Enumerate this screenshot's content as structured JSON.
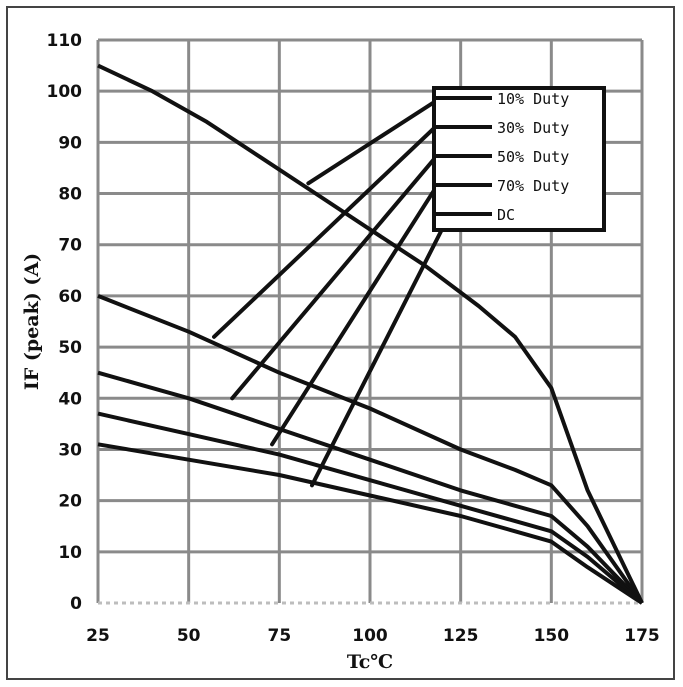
{
  "chart_data": {
    "type": "line",
    "xlabel": "Tc℃",
    "ylabel": "IF (peak) (A)",
    "xlim": [
      25,
      175
    ],
    "ylim": [
      0,
      110
    ],
    "xticks": [
      25,
      50,
      75,
      100,
      125,
      150,
      175
    ],
    "yticks": [
      0,
      10,
      20,
      30,
      40,
      50,
      60,
      70,
      80,
      90,
      100,
      110
    ],
    "grid": true,
    "legend_position": "top-right",
    "series": [
      {
        "name": "10% Duty",
        "x": [
          25,
          40,
          55,
          70,
          85,
          100,
          115,
          130,
          140,
          150,
          160,
          175
        ],
        "y": [
          105,
          100,
          94,
          87,
          80,
          73,
          66,
          58,
          52,
          42,
          22,
          0
        ]
      },
      {
        "name": "30% Duty",
        "x": [
          25,
          50,
          75,
          100,
          125,
          140,
          150,
          160,
          175
        ],
        "y": [
          60,
          53,
          45,
          38,
          30,
          26,
          23,
          15,
          0
        ]
      },
      {
        "name": "50% Duty",
        "x": [
          25,
          50,
          75,
          100,
          125,
          140,
          150,
          160,
          175
        ],
        "y": [
          45,
          40,
          34,
          28,
          22,
          19,
          17,
          11,
          0
        ]
      },
      {
        "name": "70% Duty",
        "x": [
          25,
          50,
          75,
          100,
          125,
          140,
          150,
          160,
          175
        ],
        "y": [
          37,
          33,
          29,
          24,
          19,
          16,
          14,
          9,
          0
        ]
      },
      {
        "name": "DC",
        "x": [
          25,
          50,
          75,
          100,
          125,
          140,
          150,
          160,
          175
        ],
        "y": [
          31,
          28,
          25,
          21,
          17,
          14,
          12,
          7,
          0
        ]
      }
    ],
    "leader_lines": [
      {
        "series": "10% Duty",
        "from": [
          83,
          82
        ],
        "to": [
          118,
          98
        ]
      },
      {
        "series": "30% Duty",
        "from": [
          57,
          52
        ],
        "to": [
          118,
          93
        ]
      },
      {
        "series": "50% Duty",
        "from": [
          62,
          40
        ],
        "to": [
          118,
          87
        ]
      },
      {
        "series": "70% Duty",
        "from": [
          73,
          31
        ],
        "to": [
          118,
          81
        ]
      },
      {
        "series": "DC",
        "from": [
          84,
          23
        ],
        "to": [
          122,
          76
        ]
      }
    ]
  }
}
